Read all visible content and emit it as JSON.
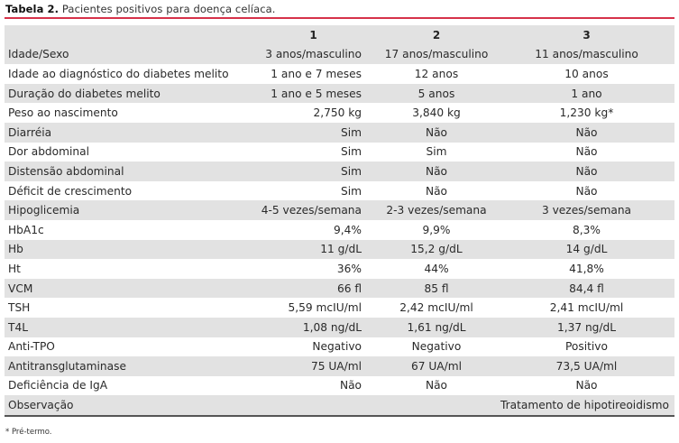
{
  "caption": {
    "label": "Tabela 2.",
    "text": "Pacientes positivos para doença celíaca."
  },
  "header": {
    "param": "",
    "col1": "1",
    "col2": "2",
    "col3": "3"
  },
  "rows": [
    {
      "param": "Idade/Sexo",
      "c1": "3 anos/masculino",
      "c2": "17 anos/masculino",
      "c3": "11 anos/masculino"
    },
    {
      "param": "Idade ao diagnóstico do diabetes melito",
      "c1": "1 ano e 7 meses",
      "c2": "12 anos",
      "c3": "10 anos"
    },
    {
      "param": "Duração do diabetes melito",
      "c1": "1 ano e 5 meses",
      "c2": "5 anos",
      "c3": "1 ano"
    },
    {
      "param": "Peso ao nascimento",
      "c1": "2,750 kg",
      "c2": "3,840 kg",
      "c3": "1,230 kg*"
    },
    {
      "param": "Diarréia",
      "c1": "Sim",
      "c2": "Não",
      "c3": "Não"
    },
    {
      "param": "Dor abdominal",
      "c1": "Sim",
      "c2": "Sim",
      "c3": "Não"
    },
    {
      "param": "Distensão abdominal",
      "c1": "Sim",
      "c2": "Não",
      "c3": "Não"
    },
    {
      "param": "Déficit de crescimento",
      "c1": "Sim",
      "c2": "Não",
      "c3": "Não"
    },
    {
      "param": "Hipoglicemia",
      "c1": "4-5 vezes/semana",
      "c2": "2-3 vezes/semana",
      "c3": "3 vezes/semana"
    },
    {
      "param": "HbA1c",
      "c1": "9,4%",
      "c2": "9,9%",
      "c3": "8,3%"
    },
    {
      "param": "Hb",
      "c1": "11 g/dL",
      "c2": "15,2 g/dL",
      "c3": "14 g/dL"
    },
    {
      "param": "Ht",
      "c1": "36%",
      "c2": "44%",
      "c3": "41,8%"
    },
    {
      "param": "VCM",
      "c1": "66 fl",
      "c2": "85 fl",
      "c3": "84,4 fl"
    },
    {
      "param": "TSH",
      "c1": "5,59 mcIU/ml",
      "c2": "2,42 mcIU/ml",
      "c3": "2,41 mcIU/ml"
    },
    {
      "param": "T4L",
      "c1": "1,08 ng/dL",
      "c2": "1,61 ng/dL",
      "c3": "1,37 ng/dL"
    },
    {
      "param": "Anti-TPO",
      "c1": "Negativo",
      "c2": "Negativo",
      "c3": "Positivo"
    },
    {
      "param": "Antitransglutaminase",
      "c1": "75 UA/ml",
      "c2": "67 UA/ml",
      "c3": "73,5 UA/ml"
    },
    {
      "param": "Deficiência de IgA",
      "c1": "Não",
      "c2": "Não",
      "c3": "Não"
    },
    {
      "param": "Observação",
      "c1": "",
      "c2": "",
      "c3": "Tratamento de hipotireoidismo"
    }
  ],
  "footnote": "* Pré-termo.",
  "colors": {
    "accent_rule": "#d6324a",
    "shaded_row": "#e2e2e2"
  }
}
